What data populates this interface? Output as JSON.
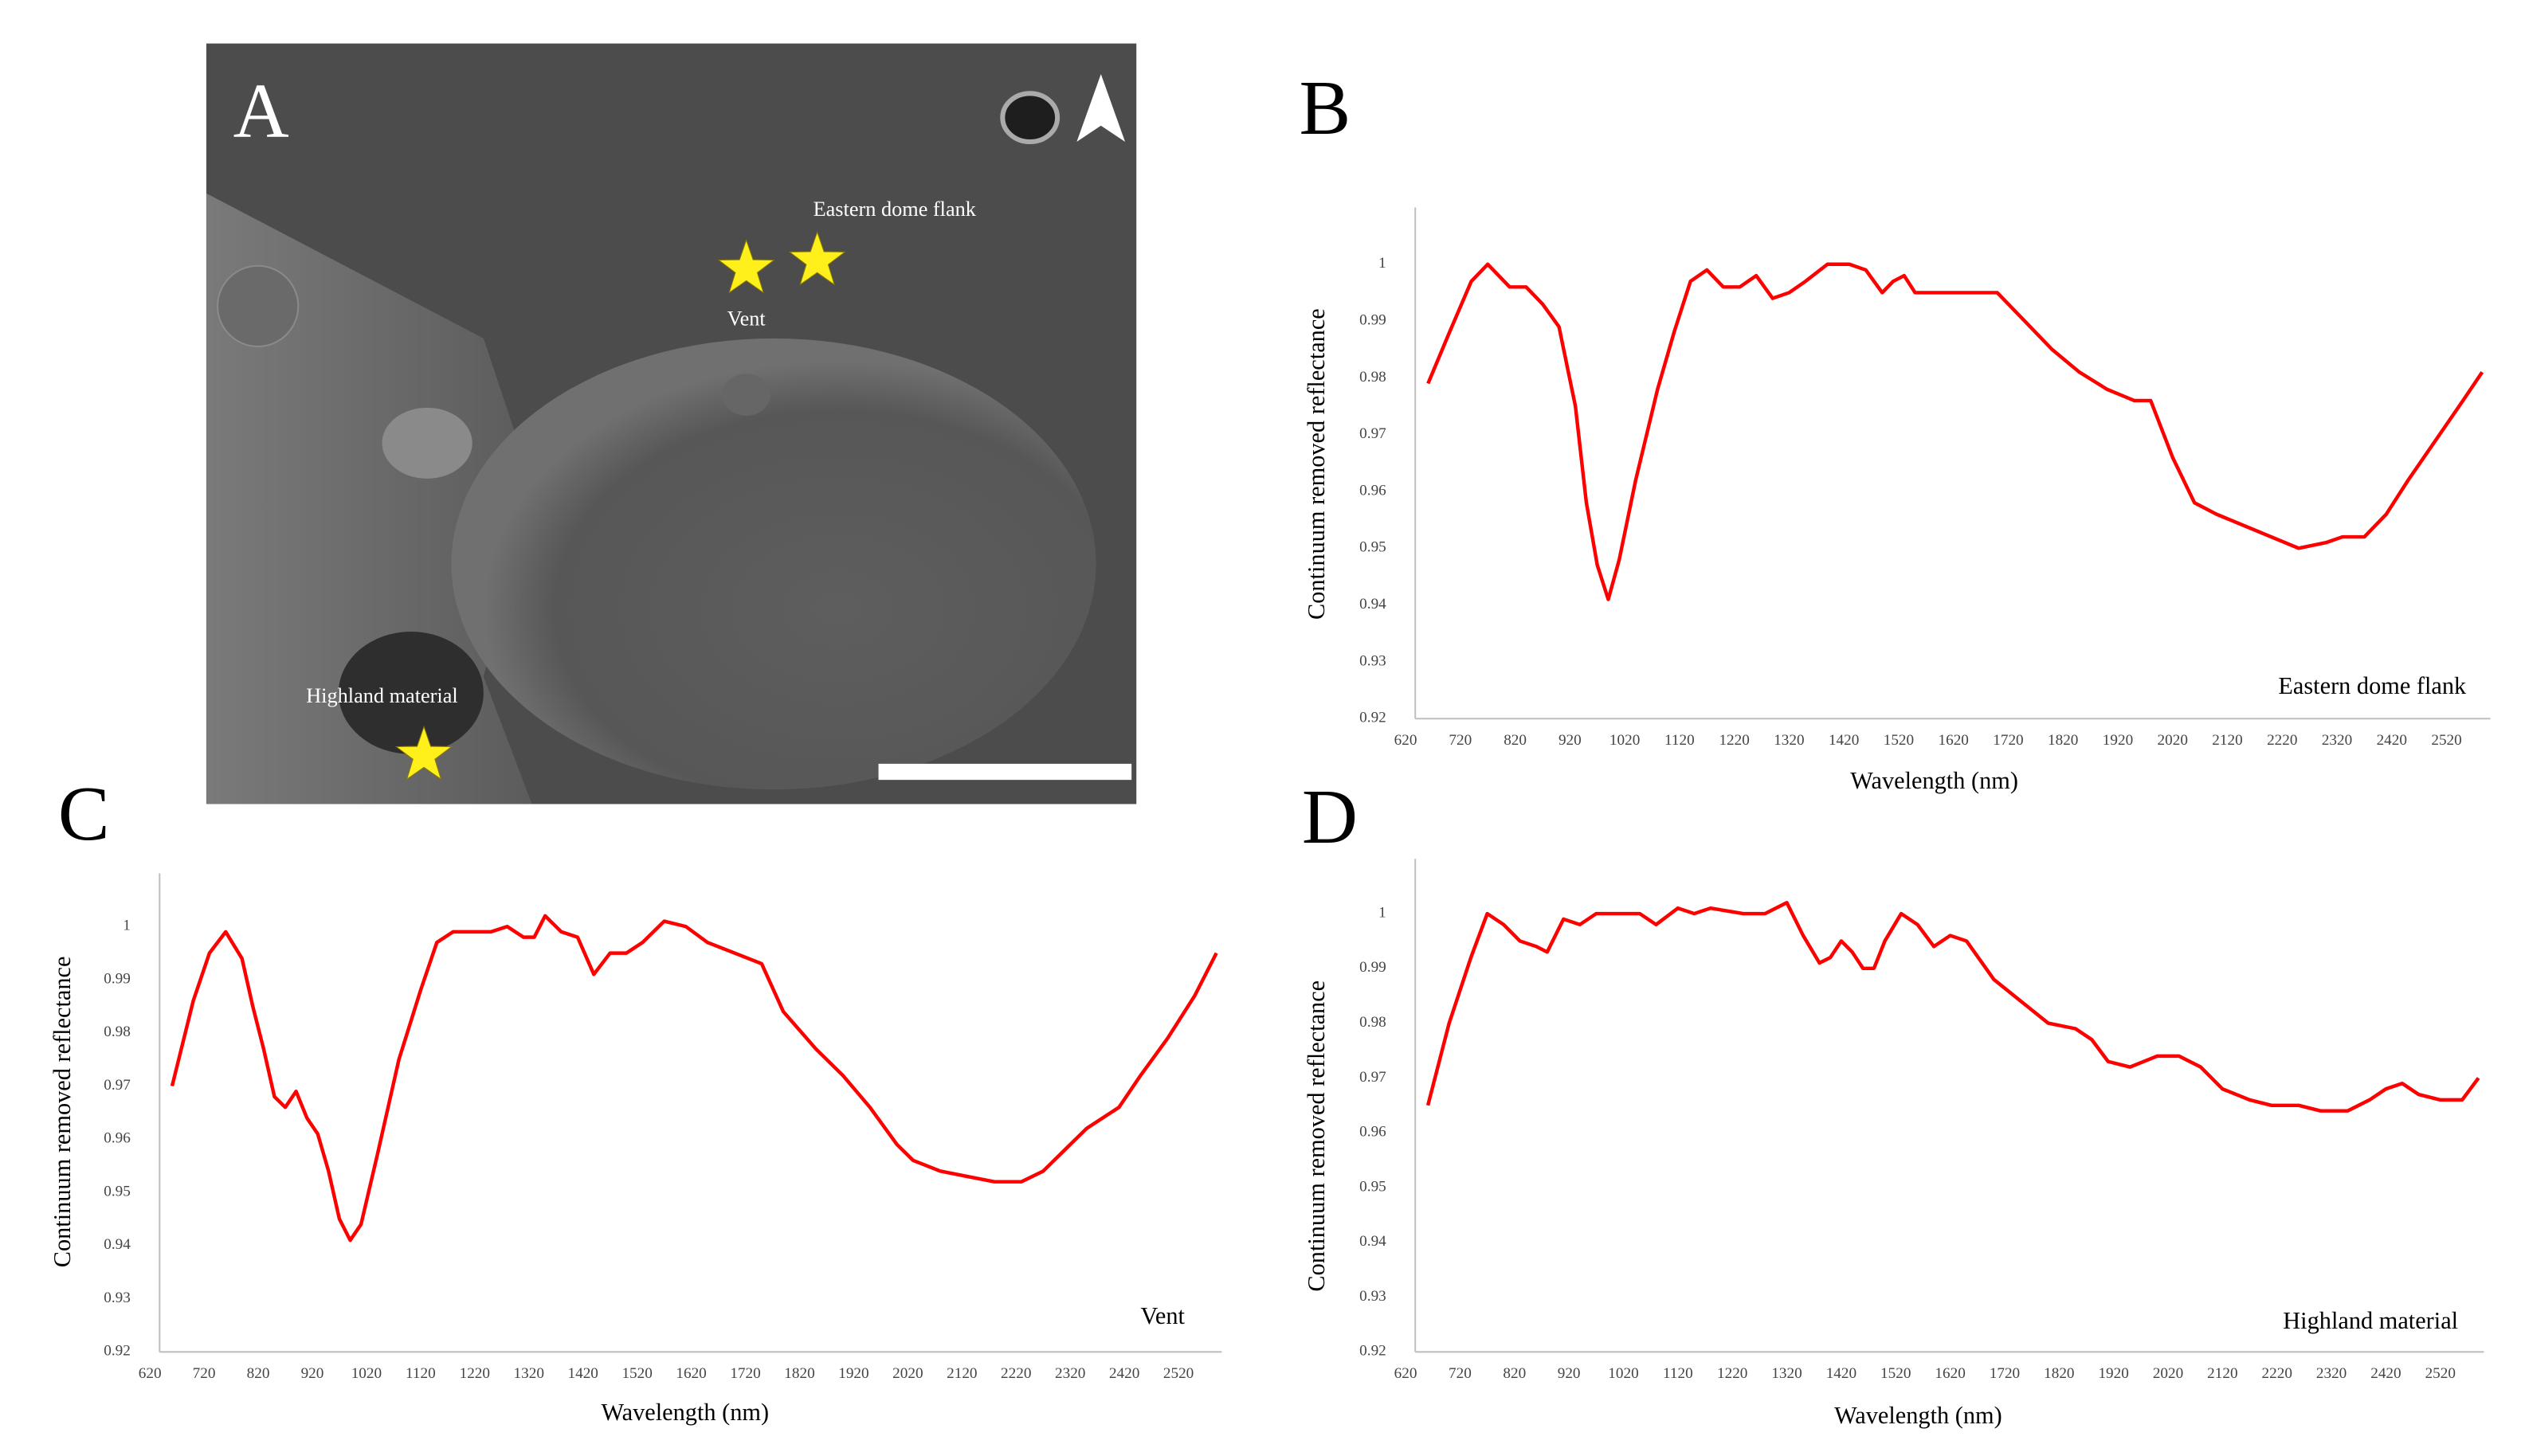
{
  "image_panel": {
    "label": "A",
    "annotations": [
      "Eastern dome flank",
      "Vent",
      "Highland material"
    ]
  },
  "chart_data": [
    {
      "type": "line",
      "panel_label": "B",
      "x_label": "Wavelength (nm)",
      "y_label": "Continuum removed reflectance",
      "x": [
        661,
        700,
        740,
        770,
        790,
        810,
        840,
        870,
        900,
        930,
        950,
        970,
        990,
        1010,
        1040,
        1080,
        1110,
        1140,
        1170,
        1200,
        1230,
        1260,
        1290,
        1320,
        1350,
        1390,
        1430,
        1460,
        1490,
        1510,
        1530,
        1550,
        1600,
        1650,
        1700,
        1750,
        1800,
        1850,
        1900,
        1950,
        1980,
        2020,
        2060,
        2100,
        2150,
        2200,
        2250,
        2300,
        2330,
        2370,
        2410,
        2450,
        2500,
        2550,
        2585
      ],
      "series": [
        {
          "name": "Eastern dome flank",
          "color": "#ff0000",
          "values": [
            0.979,
            0.988,
            0.997,
            1.0,
            0.998,
            0.996,
            0.996,
            0.993,
            0.989,
            0.975,
            0.958,
            0.947,
            0.941,
            0.948,
            0.962,
            0.978,
            0.988,
            0.997,
            0.999,
            0.996,
            0.996,
            0.998,
            0.994,
            0.995,
            0.997,
            1.0,
            1.0,
            0.999,
            0.995,
            0.997,
            0.998,
            0.995,
            0.995,
            0.995,
            0.995,
            0.99,
            0.985,
            0.981,
            0.978,
            0.976,
            0.976,
            0.966,
            0.958,
            0.956,
            0.954,
            0.952,
            0.95,
            0.951,
            0.952,
            0.952,
            0.956,
            0.962,
            0.969,
            0.976,
            0.981
          ]
        }
      ],
      "xlim": [
        620,
        2600
      ],
      "xticks": [
        620,
        720,
        820,
        920,
        1020,
        1120,
        1220,
        1320,
        1420,
        1520,
        1620,
        1720,
        1820,
        1920,
        2020,
        2120,
        2220,
        2320,
        2420,
        2520
      ],
      "ylim": [
        0.92,
        1.01
      ],
      "yticks": [
        0.92,
        0.93,
        0.94,
        0.95,
        0.96,
        0.97,
        0.98,
        0.99,
        1
      ],
      "grid": false
    },
    {
      "type": "line",
      "panel_label": "C",
      "x_label": "Wavelength (nm)",
      "y_label": "Continuum removed reflectance",
      "x": [
        661,
        700,
        730,
        760,
        790,
        810,
        830,
        850,
        870,
        890,
        910,
        930,
        950,
        970,
        990,
        1010,
        1040,
        1080,
        1120,
        1150,
        1180,
        1250,
        1280,
        1310,
        1330,
        1350,
        1380,
        1410,
        1440,
        1470,
        1500,
        1530,
        1570,
        1610,
        1650,
        1700,
        1750,
        1790,
        1850,
        1900,
        1950,
        2000,
        2030,
        2080,
        2130,
        2180,
        2230,
        2270,
        2310,
        2350,
        2410,
        2450,
        2500,
        2550,
        2590
      ],
      "series": [
        {
          "name": "Vent",
          "color": "#ff0000",
          "values": [
            0.97,
            0.986,
            0.995,
            0.999,
            0.994,
            0.985,
            0.977,
            0.968,
            0.966,
            0.969,
            0.964,
            0.961,
            0.954,
            0.945,
            0.941,
            0.944,
            0.957,
            0.975,
            0.988,
            0.997,
            0.999,
            0.999,
            1.0,
            0.998,
            0.998,
            1.002,
            0.999,
            0.998,
            0.991,
            0.995,
            0.995,
            0.997,
            1.001,
            1.0,
            0.997,
            0.995,
            0.993,
            0.984,
            0.977,
            0.972,
            0.966,
            0.959,
            0.956,
            0.954,
            0.953,
            0.952,
            0.952,
            0.954,
            0.958,
            0.962,
            0.966,
            0.972,
            0.979,
            0.987,
            0.995
          ]
        }
      ],
      "xlim": [
        620,
        2600
      ],
      "xticks": [
        620,
        720,
        820,
        920,
        1020,
        1120,
        1220,
        1320,
        1420,
        1520,
        1620,
        1720,
        1820,
        1920,
        2020,
        2120,
        2220,
        2320,
        2420,
        2520
      ],
      "ylim": [
        0.92,
        1.01
      ],
      "yticks": [
        0.92,
        0.93,
        0.94,
        0.95,
        0.96,
        0.97,
        0.98,
        0.99,
        1
      ],
      "grid": false
    },
    {
      "type": "line",
      "panel_label": "D",
      "x_label": "Wavelength (nm)",
      "y_label": "Continuum removed reflectance",
      "x": [
        661,
        700,
        740,
        770,
        800,
        830,
        860,
        880,
        910,
        940,
        970,
        1010,
        1050,
        1080,
        1120,
        1150,
        1180,
        1240,
        1280,
        1320,
        1350,
        1380,
        1400,
        1420,
        1440,
        1460,
        1480,
        1500,
        1530,
        1560,
        1590,
        1620,
        1650,
        1700,
        1750,
        1800,
        1850,
        1880,
        1910,
        1950,
        2000,
        2040,
        2080,
        2120,
        2170,
        2210,
        2260,
        2300,
        2350,
        2390,
        2420,
        2450,
        2480,
        2520,
        2560,
        2590
      ],
      "series": [
        {
          "name": "Highland material",
          "color": "#ff0000",
          "values": [
            0.965,
            0.98,
            0.992,
            1.0,
            0.998,
            0.995,
            0.994,
            0.993,
            0.999,
            0.998,
            1.0,
            1.0,
            1.0,
            0.998,
            1.001,
            1.0,
            1.001,
            1.0,
            1.0,
            1.002,
            0.996,
            0.991,
            0.992,
            0.995,
            0.993,
            0.99,
            0.99,
            0.995,
            1.0,
            0.998,
            0.994,
            0.996,
            0.995,
            0.988,
            0.984,
            0.98,
            0.979,
            0.977,
            0.973,
            0.972,
            0.974,
            0.974,
            0.972,
            0.968,
            0.966,
            0.965,
            0.965,
            0.964,
            0.964,
            0.966,
            0.968,
            0.969,
            0.967,
            0.966,
            0.966,
            0.97
          ]
        }
      ],
      "xlim": [
        620,
        2600
      ],
      "xticks": [
        620,
        720,
        820,
        920,
        1020,
        1120,
        1220,
        1320,
        1420,
        1520,
        1620,
        1720,
        1820,
        1920,
        2020,
        2120,
        2220,
        2320,
        2420,
        2520
      ],
      "ylim": [
        0.92,
        1.01
      ],
      "yticks": [
        0.92,
        0.93,
        0.94,
        0.95,
        0.96,
        0.97,
        0.98,
        0.99,
        1
      ],
      "grid": false
    }
  ]
}
